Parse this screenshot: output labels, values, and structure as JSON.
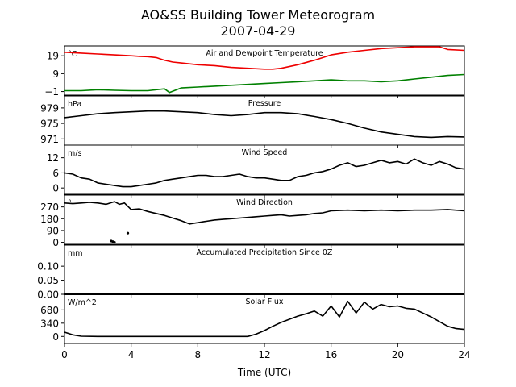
{
  "figure": {
    "title_line1": "AO&SS Building Tower Meteorogram",
    "title_line2": "2007-04-29",
    "xlabel": "Time (UTC)"
  },
  "chart_data": [
    {
      "type": "line",
      "title": "Air and Dewpoint Temperature",
      "unit_label": "°C",
      "ylim": [
        -3,
        24.5
      ],
      "yticks": [
        -1,
        9,
        19
      ],
      "ytick_labels": [
        "−1",
        "9",
        "19"
      ],
      "series": [
        {
          "color": "#ee0000",
          "x": [
            0,
            1,
            2,
            3,
            4,
            4.5,
            5,
            5.5,
            6,
            6.5,
            7,
            8,
            9,
            10,
            11,
            12,
            12.5,
            13,
            14,
            15,
            16,
            17,
            18,
            19,
            20,
            21,
            22,
            22.5,
            23,
            24
          ],
          "y": [
            21,
            20.5,
            20,
            19.5,
            19,
            18.7,
            18.5,
            18,
            16.5,
            15.5,
            15,
            14,
            13.5,
            12.5,
            12,
            11.5,
            11.5,
            12,
            14,
            16.5,
            19.5,
            21,
            22,
            23,
            23.5,
            24,
            24,
            24,
            22.5,
            22
          ]
        },
        {
          "color": "#008000",
          "x": [
            0,
            1,
            2,
            3,
            4,
            5,
            6,
            6.3,
            7,
            8,
            9,
            10,
            11,
            12,
            13,
            14,
            15,
            16,
            17,
            18,
            19,
            20,
            21,
            22,
            23,
            24
          ],
          "y": [
            -0.5,
            -0.5,
            0,
            -0.3,
            -0.5,
            -0.5,
            0.5,
            -1.5,
            1,
            1.5,
            2,
            2.5,
            3,
            3.5,
            4,
            4.5,
            5,
            5.5,
            5,
            5,
            4.5,
            5,
            6,
            7,
            8,
            8.5
          ]
        }
      ]
    },
    {
      "type": "line",
      "title": "Pressure",
      "unit_label": "hPa",
      "ylim": [
        969.4,
        982.1
      ],
      "yticks": [
        971,
        975,
        979
      ],
      "ytick_labels": [
        "971",
        "975",
        "979"
      ],
      "series": [
        {
          "color": "#000000",
          "x": [
            0,
            1,
            2,
            3,
            4,
            5,
            6,
            7,
            8,
            9,
            10,
            11,
            12,
            13,
            14,
            15,
            16,
            17,
            18,
            19,
            20,
            21,
            22,
            23,
            24
          ],
          "y": [
            976.5,
            977,
            977.5,
            977.8,
            978,
            978.2,
            978.2,
            978,
            977.8,
            977.3,
            977,
            977.3,
            977.8,
            977.8,
            977.5,
            976.8,
            976,
            975,
            973.8,
            972.8,
            972.2,
            971.6,
            971.4,
            971.6,
            971.5
          ]
        }
      ]
    },
    {
      "type": "line",
      "title": "Wind Speed",
      "unit_label": "m/s",
      "ylim": [
        -2.5,
        17
      ],
      "yticks": [
        0,
        6,
        12
      ],
      "ytick_labels": [
        "0",
        "6",
        "12"
      ],
      "series": [
        {
          "color": "#000000",
          "x": [
            0,
            0.5,
            1,
            1.5,
            2,
            2.5,
            3,
            3.5,
            4,
            4.5,
            5,
            5.5,
            6,
            6.5,
            7,
            7.5,
            8,
            8.5,
            9,
            9.5,
            10,
            10.5,
            11,
            11.5,
            12,
            12.5,
            13,
            13.5,
            14,
            14.5,
            15,
            15.5,
            16,
            16.5,
            17,
            17.5,
            18,
            18.5,
            19,
            19.5,
            20,
            20.5,
            21,
            21.5,
            22,
            22.5,
            23,
            23.5,
            24
          ],
          "y": [
            6,
            5.5,
            4,
            3.5,
            2,
            1.5,
            1,
            0.5,
            0.5,
            1,
            1.5,
            2,
            3,
            3.5,
            4,
            4.5,
            5,
            5,
            4.5,
            4.5,
            5,
            5.5,
            4.5,
            4,
            4,
            3.5,
            3,
            3,
            4.5,
            5,
            6,
            6.5,
            7.5,
            9,
            10,
            8.5,
            9,
            10,
            11,
            10,
            10.5,
            9.5,
            11.5,
            10,
            9,
            10.5,
            9.5,
            8,
            7.5
          ]
        }
      ]
    },
    {
      "type": "line",
      "title": "Wind Direction",
      "unit_label": "°",
      "ylim": [
        -15,
        360
      ],
      "yticks": [
        0,
        90,
        180,
        270
      ],
      "ytick_labels": [
        "0",
        "90",
        "180",
        "270"
      ],
      "series": [
        {
          "color": "#000000",
          "x": [
            0,
            0.5,
            1,
            1.5,
            2,
            2.5,
            3,
            3.3,
            3.6,
            4,
            4.5,
            5,
            5.5,
            6,
            6.5,
            7,
            7.5,
            8,
            8.5,
            9,
            9.5,
            10,
            10.5,
            11,
            11.5,
            12,
            12.5,
            13,
            13.5,
            14,
            14.5,
            15,
            15.5,
            16,
            17,
            18,
            19,
            20,
            21,
            22,
            23,
            24
          ],
          "y": [
            300,
            295,
            300,
            305,
            300,
            290,
            310,
            290,
            300,
            250,
            255,
            235,
            220,
            205,
            185,
            165,
            140,
            150,
            160,
            170,
            175,
            180,
            185,
            190,
            195,
            200,
            205,
            210,
            200,
            205,
            210,
            220,
            225,
            240,
            245,
            240,
            245,
            240,
            245,
            245,
            250,
            240
          ]
        },
        {
          "color": "#000000",
          "x": [
            2.8,
            2.9,
            3.0,
            3.8
          ],
          "y": [
            10,
            5,
            0,
            70
          ]
        }
      ]
    },
    {
      "type": "line",
      "title": "Accumulated Precipitation Since 0Z",
      "unit_label": "mm",
      "ylim": [
        0,
        0.175
      ],
      "yticks": [
        0,
        0.05,
        0.1
      ],
      "ytick_labels": [
        "0.00",
        "0.05",
        "0.10"
      ],
      "series": [
        {
          "color": "#000000",
          "x": [
            0,
            24
          ],
          "y": [
            0,
            0
          ]
        }
      ]
    },
    {
      "type": "line",
      "title": "Solar Flux",
      "unit_label": "W/m^2",
      "ylim": [
        -180,
        1080
      ],
      "yticks": [
        0,
        340,
        680
      ],
      "ytick_labels": [
        "0",
        "340",
        "680"
      ],
      "series": [
        {
          "color": "#000000",
          "x": [
            0,
            0.5,
            1,
            2,
            3,
            4,
            5,
            6,
            7,
            8,
            9,
            10,
            11,
            11.5,
            12,
            12.5,
            13,
            13.5,
            14,
            14.5,
            15,
            15.5,
            16,
            16.5,
            17,
            17.5,
            18,
            18.5,
            19,
            19.5,
            20,
            20.5,
            21,
            21.5,
            22,
            22.5,
            23,
            23.5,
            24
          ],
          "y": [
            110,
            40,
            5,
            0,
            0,
            0,
            0,
            0,
            0,
            0,
            0,
            0,
            0,
            60,
            150,
            260,
            360,
            440,
            520,
            580,
            650,
            520,
            780,
            500,
            900,
            600,
            880,
            700,
            820,
            760,
            780,
            720,
            700,
            600,
            500,
            380,
            260,
            200,
            180
          ]
        }
      ]
    }
  ],
  "x_axis": {
    "xlim": [
      0,
      24
    ],
    "ticks": [
      0,
      4,
      8,
      12,
      16,
      20,
      24
    ],
    "tick_labels": [
      "0",
      "4",
      "8",
      "12",
      "16",
      "20",
      "24"
    ]
  }
}
